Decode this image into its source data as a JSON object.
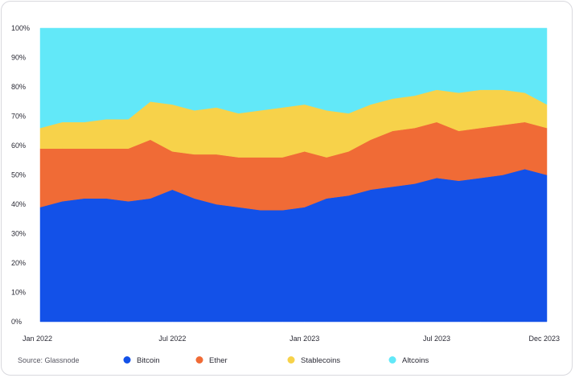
{
  "chart_data": {
    "type": "area",
    "stacked": true,
    "normalized": true,
    "source": "Source: Glassnode",
    "x_ticks": [
      "Jan 2022",
      "Jul 2022",
      "Jan 2023",
      "Jul 2023",
      "Dec 2023"
    ],
    "y_ticks": [
      "0%",
      "10%",
      "20%",
      "30%",
      "40%",
      "50%",
      "60%",
      "70%",
      "80%",
      "90%",
      "100%"
    ],
    "ylim": [
      0,
      100
    ],
    "grid": false,
    "legend_position": "bottom",
    "x": [
      "2022-01",
      "2022-02",
      "2022-03",
      "2022-04",
      "2022-05",
      "2022-06",
      "2022-07",
      "2022-08",
      "2022-09",
      "2022-10",
      "2022-11",
      "2022-12",
      "2023-01",
      "2023-02",
      "2023-03",
      "2023-04",
      "2023-05",
      "2023-06",
      "2023-07",
      "2023-08",
      "2023-09",
      "2023-10",
      "2023-11",
      "2023-12"
    ],
    "series": [
      {
        "name": "Bitcoin",
        "color": "#1351e8",
        "values": [
          39,
          41,
          42,
          42,
          41,
          42,
          45,
          42,
          40,
          39,
          38,
          38,
          39,
          42,
          43,
          45,
          46,
          47,
          49,
          48,
          49,
          50,
          52,
          50
        ]
      },
      {
        "name": "Ether",
        "color": "#f06b36",
        "values": [
          20,
          18,
          17,
          17,
          18,
          20,
          13,
          15,
          17,
          17,
          18,
          18,
          19,
          14,
          15,
          17,
          19,
          19,
          19,
          17,
          17,
          17,
          16,
          16
        ]
      },
      {
        "name": "Stablecoins",
        "color": "#f7d24a",
        "values": [
          7,
          9,
          9,
          10,
          10,
          13,
          16,
          15,
          16,
          15,
          16,
          17,
          16,
          16,
          13,
          12,
          11,
          11,
          11,
          13,
          13,
          12,
          10,
          8
        ]
      },
      {
        "name": "Altcoins",
        "color": "#62e8f8",
        "values": [
          34,
          32,
          32,
          31,
          31,
          25,
          26,
          28,
          27,
          29,
          28,
          27,
          26,
          28,
          29,
          26,
          24,
          23,
          21,
          22,
          21,
          21,
          22,
          26
        ]
      }
    ]
  }
}
